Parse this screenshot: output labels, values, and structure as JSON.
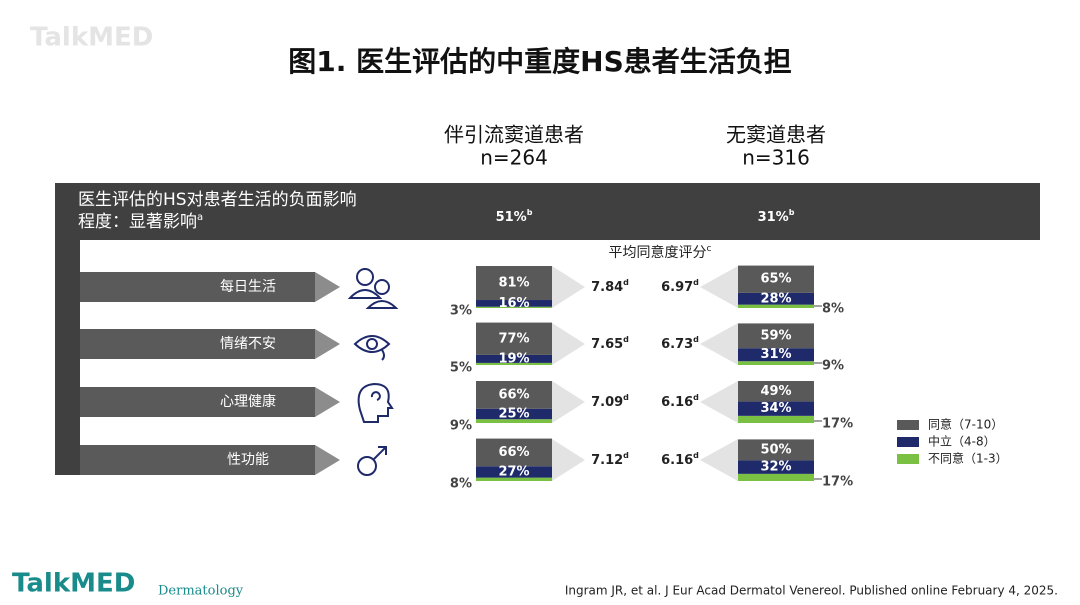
{
  "header": {
    "watermark": "TalkMED",
    "title": "图1. 医生评估的中重度HS患者生活负担"
  },
  "groups": [
    {
      "name": "伴引流窦道患者",
      "n": "n=264",
      "overall": "51%",
      "overall_note": "b"
    },
    {
      "name": "无窦道患者",
      "n": "n=316",
      "overall": "31%",
      "overall_note": "b"
    }
  ],
  "banner": {
    "line1": "医生评估的HS对患者生活的负面影响",
    "line2": "程度：显著影响",
    "note": "a"
  },
  "mean_title": {
    "text": "平均同意度评分",
    "note": "c"
  },
  "domains": [
    "每日生活",
    "情绪不安",
    "心理健康",
    "性功能"
  ],
  "series": [
    {
      "name": "同意（7-10）",
      "color": "#595959"
    },
    {
      "name": "中立（4-8）",
      "color": "#1f2a6b"
    },
    {
      "name": "不同意（1-3）",
      "color": "#7ac143"
    }
  ],
  "left": {
    "values": [
      [
        81,
        16,
        3
      ],
      [
        77,
        19,
        5
      ],
      [
        66,
        25,
        9
      ],
      [
        66,
        27,
        8
      ]
    ],
    "value_labels": [
      [
        "81%",
        "16%",
        "3%"
      ],
      [
        "77%",
        "19%",
        "5%"
      ],
      [
        "66%",
        "25%",
        "9%"
      ],
      [
        "66%",
        "27%",
        "8%"
      ]
    ],
    "means": [
      7.84,
      7.65,
      7.09,
      7.12
    ],
    "mean_note": "d"
  },
  "right": {
    "values": [
      [
        65,
        28,
        8
      ],
      [
        59,
        31,
        9
      ],
      [
        49,
        34,
        17
      ],
      [
        50,
        32,
        17
      ]
    ],
    "value_labels": [
      [
        "65%",
        "28%",
        "8%"
      ],
      [
        "59%",
        "31%",
        "9%"
      ],
      [
        "49%",
        "34%",
        "17%"
      ],
      [
        "50%",
        "32%",
        "17%"
      ]
    ],
    "means": [
      6.97,
      6.73,
      6.16,
      6.16
    ],
    "mean_note": "d"
  },
  "footer": {
    "logo": "TalkMED",
    "logo_sub": "Dermatology",
    "citation": "Ingram JR, et al. J Eur Acad Dermatol Venereol. Published online February 4, 2025."
  }
}
